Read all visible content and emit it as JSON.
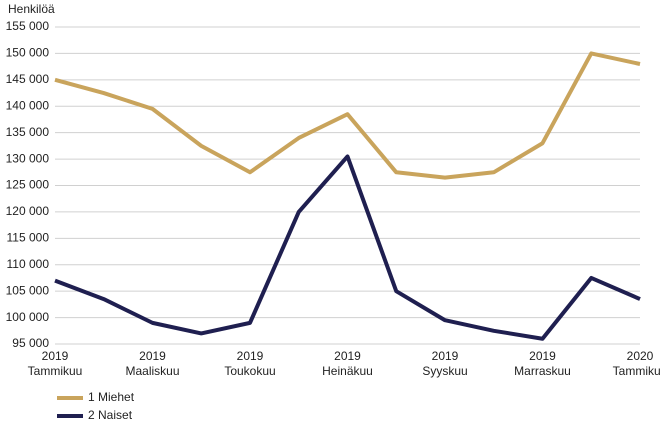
{
  "chart_data": {
    "type": "line",
    "y_label": "Henkilöä",
    "categories": [
      "Tammikuu",
      null,
      "Maaliskuu",
      null,
      "Toukokuu",
      null,
      "Heinäkuu",
      null,
      "Syyskuu",
      null,
      "Marraskuu",
      null,
      "Tammikuu"
    ],
    "category_years": [
      "2019",
      null,
      "2019",
      null,
      "2019",
      null,
      "2019",
      null,
      "2019",
      null,
      "2019",
      null,
      "2020"
    ],
    "series": [
      {
        "name": "1 Miehet",
        "color": "#c9a45c",
        "values": [
          145000,
          142500,
          139500,
          132500,
          127500,
          134000,
          138500,
          127500,
          126500,
          127500,
          133000,
          150000,
          148000
        ]
      },
      {
        "name": "2 Naiset",
        "color": "#1f1f50",
        "values": [
          107000,
          103500,
          99000,
          97000,
          99000,
          120000,
          130500,
          105000,
          99500,
          97500,
          96000,
          107500,
          103500
        ]
      }
    ],
    "ylim": [
      95000,
      155000
    ],
    "yticks": [
      {
        "value": 95000,
        "label": "95 000"
      },
      {
        "value": 100000,
        "label": "100 000"
      },
      {
        "value": 105000,
        "label": "105 000"
      },
      {
        "value": 110000,
        "label": "110 000"
      },
      {
        "value": 115000,
        "label": "115 000"
      },
      {
        "value": 120000,
        "label": "120 000"
      },
      {
        "value": 125000,
        "label": "125 000"
      },
      {
        "value": 130000,
        "label": "130 000"
      },
      {
        "value": 135000,
        "label": "135 000"
      },
      {
        "value": 140000,
        "label": "140 000"
      },
      {
        "value": 145000,
        "label": "145 000"
      },
      {
        "value": 150000,
        "label": "150 000"
      },
      {
        "value": 155000,
        "label": "155 000"
      }
    ],
    "grid": true,
    "legend": "bottom-left"
  }
}
